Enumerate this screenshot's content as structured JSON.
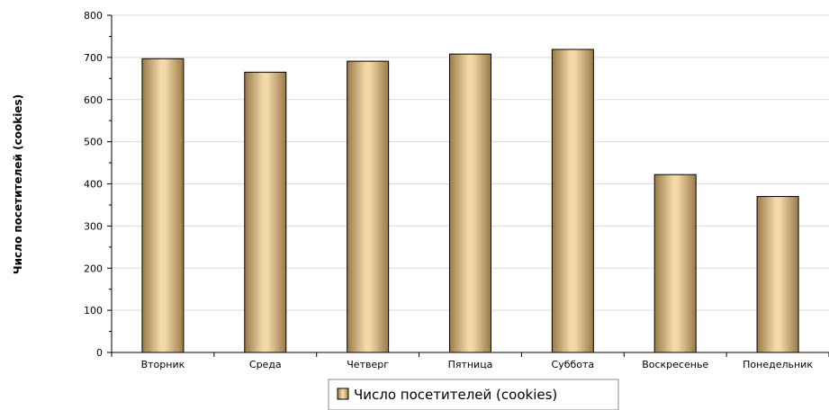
{
  "chart_data": {
    "type": "bar",
    "categories": [
      "Вторник",
      "Среда",
      "Четверг",
      "Пятница",
      "Суббота",
      "Воскресенье",
      "Понедельник"
    ],
    "series": [
      {
        "name": "Число посетителей (cookies)",
        "values": [
          697,
          665,
          691,
          708,
          719,
          422,
          370
        ]
      }
    ],
    "ylabel": "Число посетителей (cookies)",
    "xlabel": "",
    "ylim": [
      0,
      800
    ],
    "yticks": [
      0,
      100,
      200,
      300,
      400,
      500,
      600,
      700,
      800
    ],
    "grid": true,
    "legend": "bottom",
    "colors": {
      "bar_light": "#f3d9a8",
      "bar_dark": "#9a7a49",
      "bar_outline": "#000000",
      "grid": "#d9d9d9",
      "axis": "#000000"
    }
  }
}
